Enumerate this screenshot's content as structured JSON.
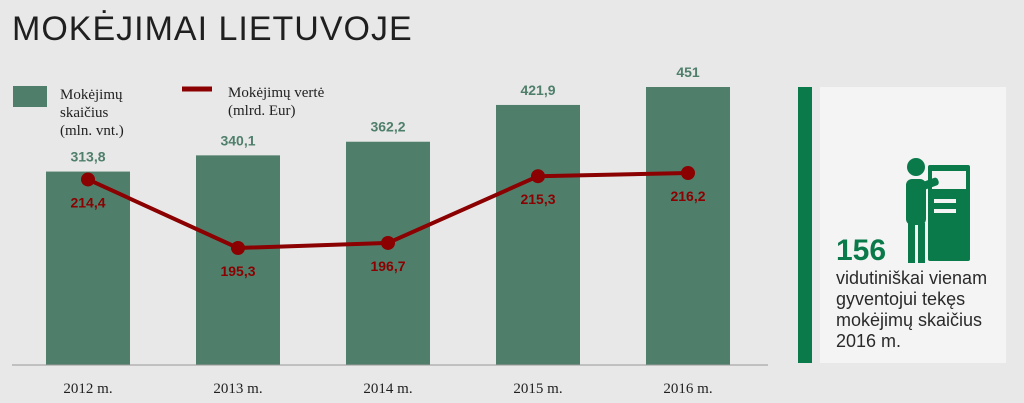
{
  "title": "MOKĖJIMAI LIETUVOJE",
  "legend": {
    "bars": {
      "label_lines": [
        "Mokėjimų",
        "skaičius",
        "(mln. vnt.)"
      ],
      "color": "#4f7f6b"
    },
    "line": {
      "label_lines": [
        "Mokėjimų vertė",
        "(mlrd. Eur)"
      ],
      "color": "#8b0000"
    }
  },
  "side": {
    "number": "156",
    "description": "vidutiniškai vienam gyventojui tekęs mokėjimų skaičius 2016 m.",
    "accent": "#0b7a4b",
    "icon": "person-at-atm-icon"
  },
  "chart_data": {
    "type": "bar",
    "categories": [
      "2012 m.",
      "2013 m.",
      "2014 m.",
      "2015 m.",
      "2016 m."
    ],
    "series": [
      {
        "name": "Mokėjimų skaičius (mln. vnt.)",
        "type": "bar",
        "values": [
          313.8,
          340.1,
          362.2,
          421.9,
          451
        ],
        "labels": [
          "313,8",
          "340,1",
          "362,2",
          "421,9",
          "451"
        ],
        "color": "#4f7f6b"
      },
      {
        "name": "Mokėjimų vertė (mlrd. Eur)",
        "type": "line",
        "values": [
          214.4,
          195.3,
          196.7,
          215.3,
          216.2
        ],
        "labels": [
          "214,4",
          "195,3",
          "196,7",
          "215,3",
          "216,2"
        ],
        "color": "#8b0000"
      }
    ],
    "bar_ylim": [
      0,
      451
    ],
    "line_ylim": [
      160,
      250
    ],
    "grid": false,
    "legend_position": "top-left"
  }
}
